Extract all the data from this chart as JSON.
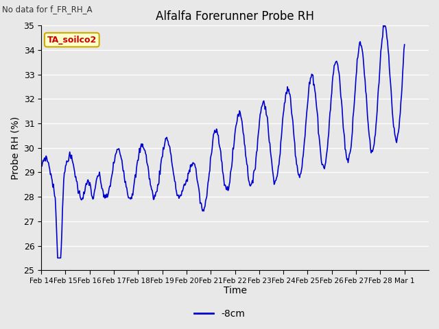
{
  "title": "Alfalfa Forerunner Probe RH",
  "no_data_label": "No data for f_FR_RH_A",
  "ylabel": "Probe RH (%)",
  "xlabel": "Time",
  "legend_label": "-8cm",
  "legend_sensor": "TA_soilco2",
  "ylim": [
    25.0,
    35.0
  ],
  "yticks": [
    25.0,
    26.0,
    27.0,
    28.0,
    29.0,
    30.0,
    31.0,
    32.0,
    33.0,
    34.0,
    35.0
  ],
  "line_color": "#0000CC",
  "line_width": 1.2,
  "bg_color": "#E8E8E8",
  "plot_bg_color": "#E8E8E8",
  "grid_color": "#FFFFFF",
  "sensor_box_facecolor": "#FFFFCC",
  "sensor_box_edgecolor": "#CCAA00",
  "sensor_text_color": "#CC0000",
  "xtick_labels": [
    "Feb 14",
    "Feb 15",
    "Feb 16",
    "Feb 17",
    "Feb 18",
    "Feb 19",
    "Feb 20",
    "Feb 21",
    "Feb 22",
    "Feb 23",
    "Feb 24",
    "Feb 25",
    "Feb 26",
    "Feb 27",
    "Feb 28",
    "Mar 1"
  ]
}
